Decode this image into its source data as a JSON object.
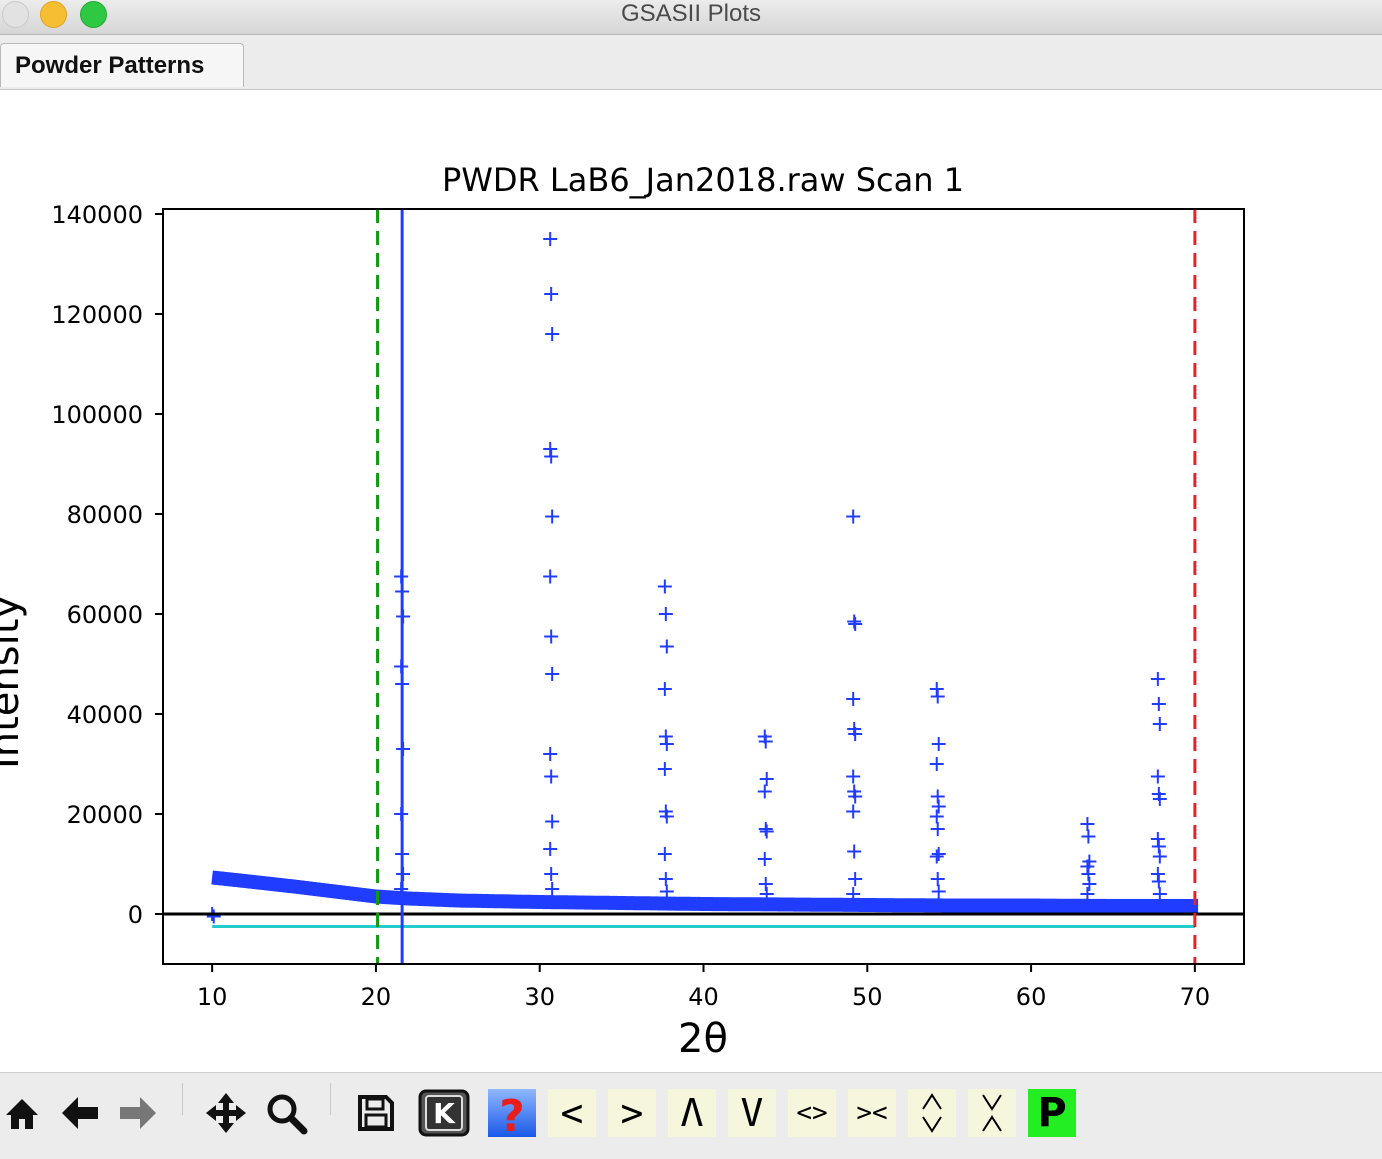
{
  "window": {
    "title": "GSASII Plots"
  },
  "tabs": [
    {
      "label": "Powder Patterns"
    }
  ],
  "chart_data": {
    "type": "scatter",
    "title": "PWDR LaB6_Jan2018.raw Scan 1",
    "xlabel": "2θ",
    "ylabel": "Intensity",
    "xlim": [
      7,
      73
    ],
    "ylim": [
      -10000,
      141000
    ],
    "xticks": [
      10,
      20,
      30,
      40,
      50,
      60,
      70
    ],
    "yticks": [
      0,
      20000,
      40000,
      60000,
      80000,
      100000,
      120000,
      140000
    ],
    "ytick_labels": [
      "0",
      "20000",
      "40000",
      "60000",
      "80000",
      "100000",
      "120000",
      "140000"
    ],
    "colors": {
      "data": "#1f3cff",
      "background_line": "#22cccc",
      "zero_line": "#000000",
      "lower_limit": "#119911",
      "upper_limit": "#ee2222",
      "cursor": "#1f3cff"
    },
    "lower_limit_x": 20.1,
    "upper_limit_x": 70.0,
    "cursor_x": 21.6,
    "zero_line_y": 0,
    "background_curve_y": -2500,
    "series": [
      {
        "background": [
          [
            10,
            7300
          ],
          [
            12,
            6600
          ],
          [
            15,
            5500
          ],
          [
            18,
            4300
          ],
          [
            20,
            3500
          ],
          [
            22,
            3100
          ],
          [
            25,
            2700
          ],
          [
            30,
            2400
          ],
          [
            35,
            2200
          ],
          [
            40,
            2000
          ],
          [
            45,
            1900
          ],
          [
            50,
            1800
          ],
          [
            55,
            1700
          ],
          [
            60,
            1700
          ],
          [
            65,
            1600
          ],
          [
            70,
            1600
          ]
        ],
        "peaks": [
          {
            "x": 21.6,
            "heights": [
              67500,
              64500,
              59500,
              49500,
              46000,
              33000,
              20000,
              12000,
              8000,
              5000
            ]
          },
          {
            "x": 30.7,
            "heights": [
              135000,
              124000,
              116000,
              93000,
              91500,
              79500,
              67500,
              55500,
              48000,
              32000,
              27500,
              18500,
              13000,
              8000,
              5000
            ]
          },
          {
            "x": 37.7,
            "heights": [
              65500,
              60000,
              53500,
              45000,
              35500,
              34000,
              29000,
              20500,
              19500,
              12000,
              7000,
              4500
            ]
          },
          {
            "x": 43.8,
            "heights": [
              35500,
              34500,
              27000,
              24500,
              17000,
              16500,
              11000,
              6000,
              4000
            ]
          },
          {
            "x": 49.2,
            "heights": [
              79500,
              58500,
              58000,
              43000,
              37000,
              36000,
              27500,
              24500,
              23500,
              20500,
              12500,
              7000,
              4000
            ]
          },
          {
            "x": 54.3,
            "heights": [
              45000,
              43500,
              34000,
              30000,
              23500,
              21500,
              19500,
              17000,
              12000,
              11500,
              7000,
              4500
            ]
          },
          {
            "x": 63.5,
            "heights": [
              18000,
              15500,
              10500,
              9500,
              8000,
              6000,
              4000
            ]
          },
          {
            "x": 67.8,
            "heights": [
              47000,
              42000,
              38000,
              27500,
              24000,
              23000,
              15000,
              13500,
              11500,
              8000,
              6500,
              4000
            ]
          }
        ],
        "outliers": [
          [
            10.0,
            0
          ],
          [
            10.1,
            -500
          ]
        ]
      }
    ]
  },
  "toolbar": {
    "buttons": [
      {
        "name": "home-button",
        "icon": "home-icon",
        "glyph": "⌂"
      },
      {
        "name": "back-button",
        "icon": "arrow-left-icon",
        "glyph": "←"
      },
      {
        "name": "forward-button",
        "icon": "arrow-right-icon",
        "glyph": "→"
      },
      {
        "name": "pan-button",
        "icon": "move-icon",
        "glyph": "✥"
      },
      {
        "name": "zoom-button",
        "icon": "magnifier-icon",
        "glyph": "🔍"
      },
      {
        "name": "save-button",
        "icon": "floppy-icon",
        "glyph": "💾"
      },
      {
        "name": "key-button",
        "icon": "k-key-icon",
        "glyph": "K"
      },
      {
        "name": "help-button",
        "icon": "question-icon",
        "glyph": "?"
      },
      {
        "name": "shift-left-button",
        "icon": "less-than-icon",
        "glyph": "<"
      },
      {
        "name": "shift-right-button",
        "icon": "greater-than-icon",
        "glyph": ">"
      },
      {
        "name": "shift-up-button",
        "icon": "caret-up-icon",
        "glyph": "Λ"
      },
      {
        "name": "shift-down-button",
        "icon": "caret-down-icon",
        "glyph": "V"
      },
      {
        "name": "expand-x-button",
        "icon": "expand-x-icon",
        "glyph": "<>"
      },
      {
        "name": "shrink-x-button",
        "icon": "shrink-x-icon",
        "glyph": "><"
      },
      {
        "name": "expand-y-button",
        "icon": "expand-y-icon",
        "glyph": "◇"
      },
      {
        "name": "shrink-y-button",
        "icon": "shrink-y-icon",
        "glyph": "ⅹ"
      },
      {
        "name": "publish-button",
        "icon": "p-icon",
        "glyph": "P"
      }
    ]
  }
}
